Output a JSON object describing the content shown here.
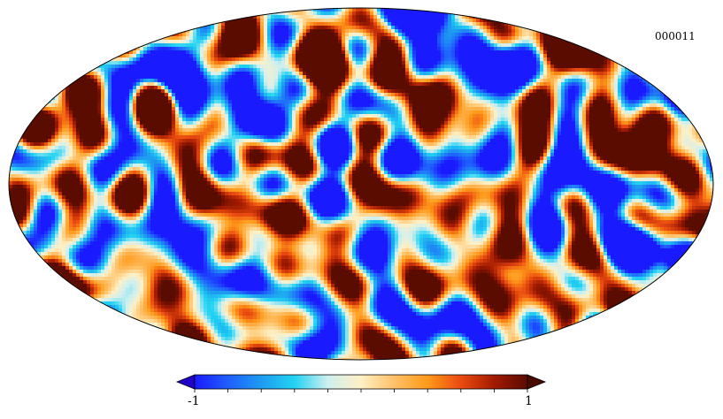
{
  "map": {
    "id_label": "000011",
    "projection": "mollweide",
    "field_type": "random temperature-anisotropy field"
  },
  "colorbar": {
    "min_label": "-1",
    "max_label": "1",
    "min_value": -1,
    "max_value": 1,
    "tick_count": 11,
    "under_color": "#1f00c8",
    "over_color": "#4a0a00",
    "colors": [
      "#1a1aff",
      "#1f5fff",
      "#1e9bf0",
      "#22d3f2",
      "#cfeff0",
      "#fff0c4",
      "#ffc168",
      "#ff9a1a",
      "#ea4b10",
      "#a21b00",
      "#5a0c00"
    ]
  },
  "colors": {
    "background": "#ffffff",
    "outline": "#000000"
  }
}
